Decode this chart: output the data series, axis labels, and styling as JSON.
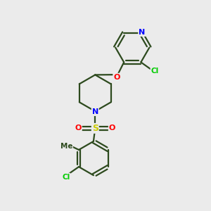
{
  "background_color": "#ebebeb",
  "bond_color": "#2d4a1e",
  "atom_colors": {
    "N": "#0000ff",
    "O": "#ff0000",
    "S": "#cccc00",
    "Cl": "#00cc00",
    "C": "#2d4a1e"
  },
  "line_width": 1.6,
  "figsize": [
    3.0,
    3.0
  ],
  "dpi": 100
}
